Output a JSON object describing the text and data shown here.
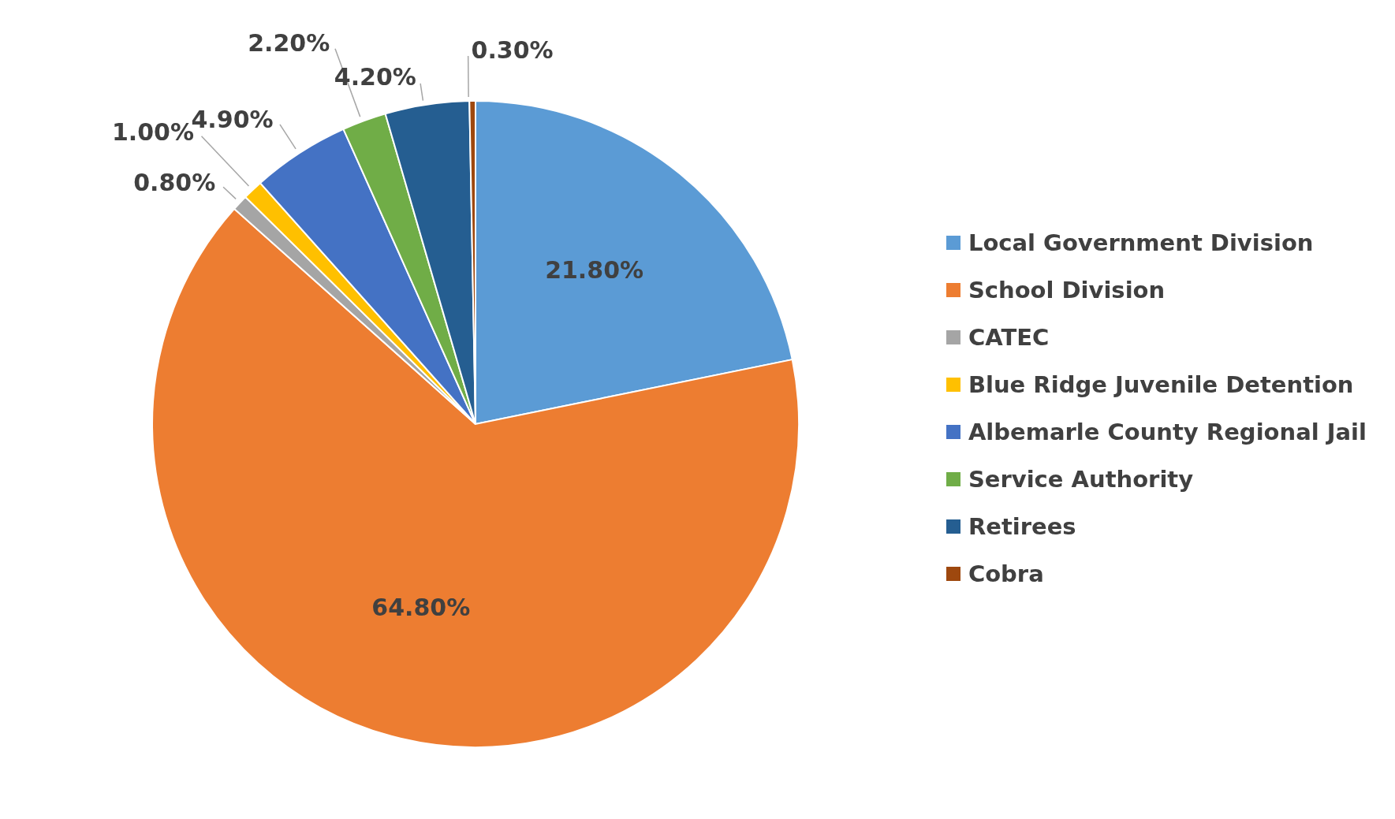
{
  "chart_data": {
    "type": "pie",
    "categories": [
      "Local Government Division",
      "School Division",
      "CATEC",
      "Blue Ridge Juvenile Detention",
      "Albemarle County Regional Jail",
      "Service Authority",
      "Retirees",
      "Cobra"
    ],
    "values": [
      21.8,
      64.8,
      0.8,
      1.0,
      4.9,
      2.2,
      4.2,
      0.3
    ],
    "value_labels": [
      "21.80%",
      "64.80%",
      "0.80%",
      "1.00%",
      "4.90%",
      "2.20%",
      "4.20%",
      "0.30%"
    ],
    "colors": [
      "#5b9bd5",
      "#ed7d31",
      "#a5a5a5",
      "#ffc000",
      "#4472c4",
      "#70ad47",
      "#255e91",
      "#9e480e"
    ],
    "legend": "right"
  }
}
